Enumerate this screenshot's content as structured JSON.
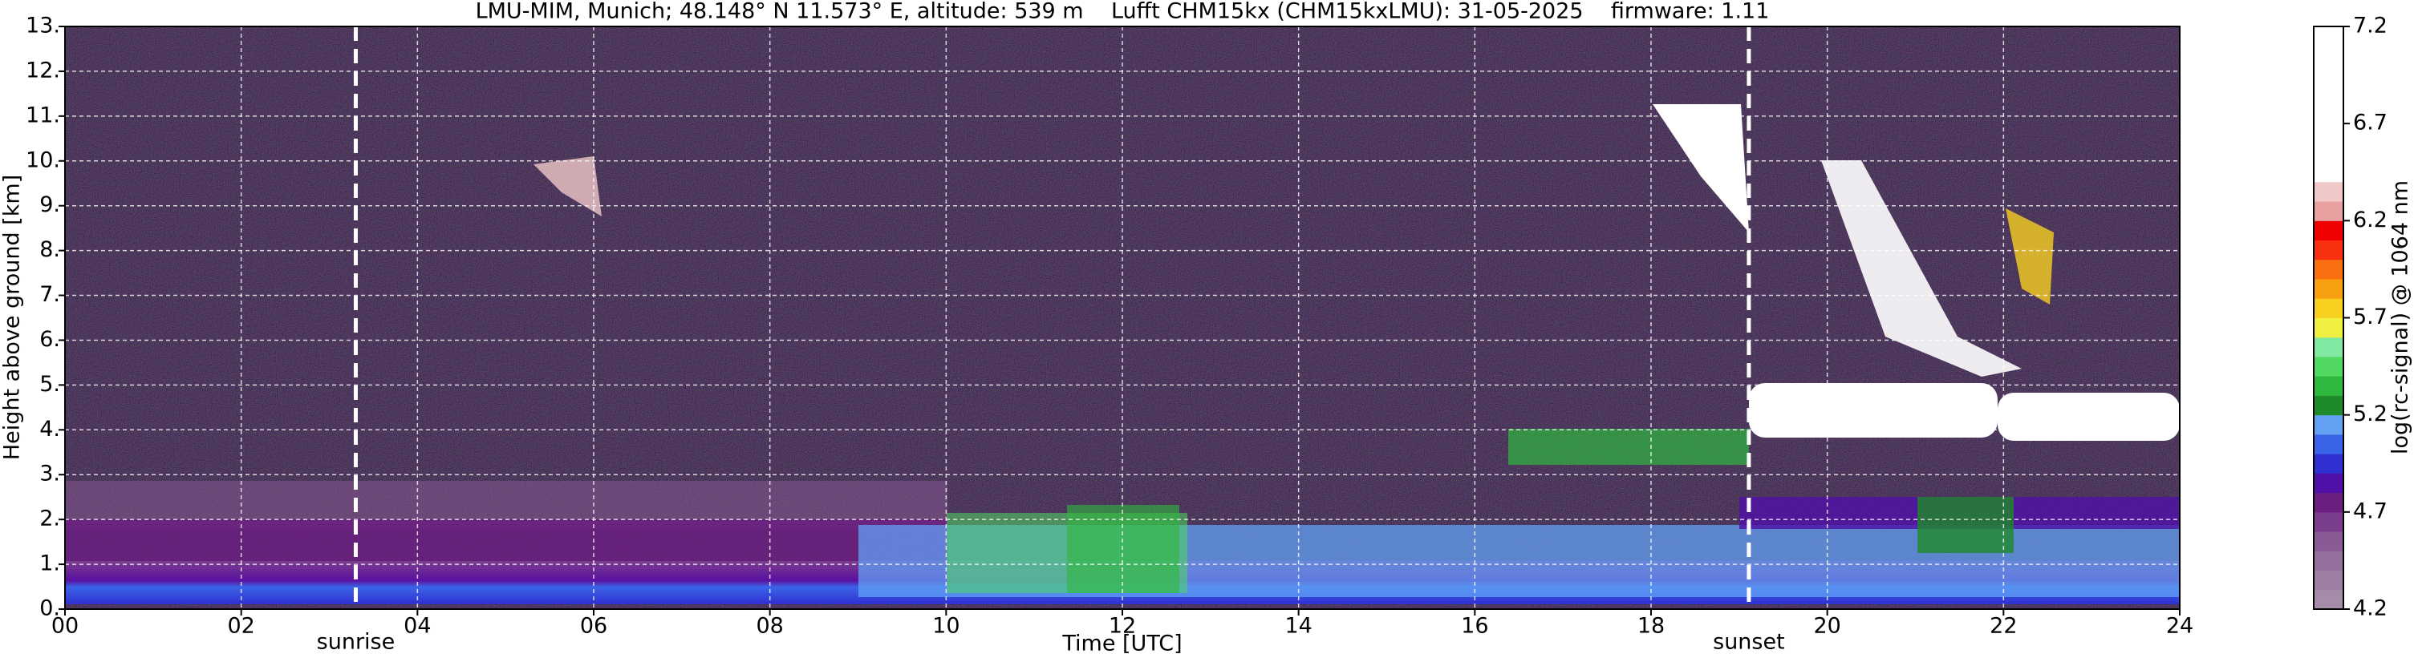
{
  "chart_data": {
    "type": "heatmap",
    "title": "LMU-MIM, Munich; 48.148° N 11.573° E, altitude: 539 m    Lufft CHM15kx (CHM15kxLMU): 31-05-2025    firmware: 1.11",
    "xlabel": "Time [UTC]",
    "ylabel": "Height above ground [km]",
    "xlim": [
      0,
      24
    ],
    "xticks": [
      {
        "value": 0,
        "label": "00"
      },
      {
        "value": 2,
        "label": "02"
      },
      {
        "value": 4,
        "label": "04"
      },
      {
        "value": 6,
        "label": "06"
      },
      {
        "value": 8,
        "label": "08"
      },
      10,
      12,
      14,
      16,
      18,
      20,
      22,
      24
    ],
    "ylim": [
      0,
      13
    ],
    "yticks": [
      {
        "value": 0,
        "label": "0."
      },
      {
        "value": 1,
        "label": "1."
      },
      {
        "value": 2,
        "label": "2."
      },
      {
        "value": 3,
        "label": "3."
      },
      {
        "value": 4,
        "label": "4."
      },
      {
        "value": 5,
        "label": "5."
      },
      {
        "value": 6,
        "label": "6."
      },
      {
        "value": 7,
        "label": "7."
      },
      {
        "value": 8,
        "label": "8."
      },
      {
        "value": 9,
        "label": "9."
      },
      {
        "value": 10,
        "label": "10."
      },
      {
        "value": 11,
        "label": "11."
      },
      {
        "value": 12,
        "label": "12."
      },
      {
        "value": 13,
        "label": "13."
      }
    ],
    "grid": true,
    "annotations": [
      {
        "text": "sunrise",
        "x": 3.3
      },
      {
        "text": "sunset",
        "x": 19.11
      }
    ],
    "colorbar": {
      "label": "log(rc-signal) @ 1064 nm",
      "clim": [
        4.2,
        7.2
      ],
      "ticks": [
        4.2,
        4.7,
        5.2,
        5.7,
        6.2,
        6.7,
        7.2
      ],
      "colors": [
        "#a58daa",
        "#9c7ea3",
        "#93709d",
        "#8a5a96",
        "#7b3e8c",
        "#6a1f80",
        "#5010a8",
        "#3030d0",
        "#3a64e8",
        "#62a0f4",
        "#1f8a2a",
        "#2eb83e",
        "#50d860",
        "#80e8a0",
        "#f0f040",
        "#f8d020",
        "#f8a010",
        "#f87010",
        "#f83010",
        "#f00000",
        "#e8a0a0",
        "#f0c8c8",
        "#ffffff",
        "#ffffff",
        "#ffffff",
        "#ffffff",
        "#ffffff",
        "#ffffff",
        "#ffffff",
        "#ffffff"
      ]
    }
  }
}
